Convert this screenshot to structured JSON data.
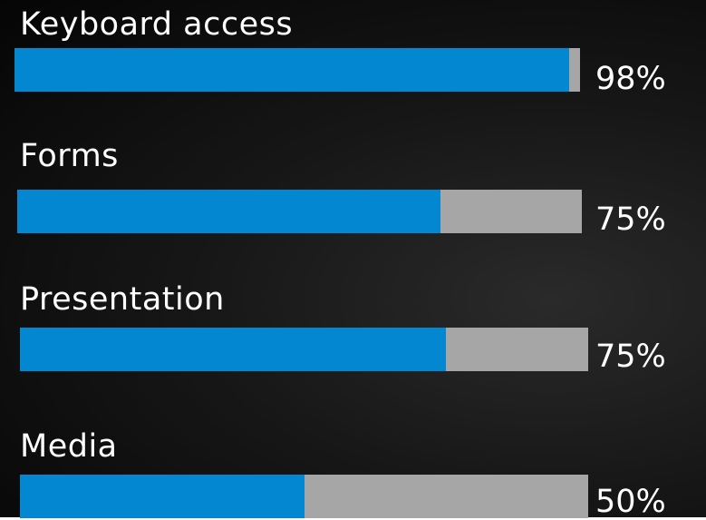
{
  "chart_data": {
    "type": "bar",
    "orientation": "horizontal",
    "categories": [
      "Keyboard access",
      "Forms",
      "Presentation",
      "Media"
    ],
    "values": [
      98,
      75,
      75,
      50
    ],
    "value_labels": [
      "98%",
      "75%",
      "75%",
      "50%"
    ],
    "xlim": [
      0,
      100
    ],
    "title": "",
    "xlabel": "",
    "ylabel": "",
    "grid": false,
    "legend": "none",
    "colors": {
      "fill": "#0387d0",
      "track": "#a6a6a6",
      "background": "#0b0b0b",
      "text": "#ffffff"
    }
  }
}
